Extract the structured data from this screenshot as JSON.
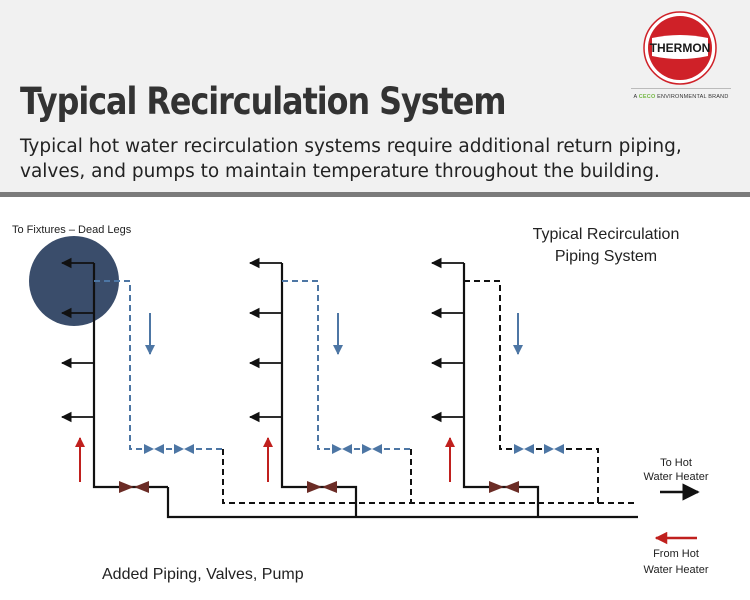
{
  "title": "Typical Recirculation System",
  "subtitle": "Typical hot water recirculation systems require additional return piping, valves, and pumps to maintain temperature throughout the building.",
  "brand": {
    "name": "THERMON",
    "tagline_prefix": "A ",
    "tagline_highlight": "CECO",
    "tagline_suffix": " ENVIRONMENTAL BRAND"
  },
  "diagram": {
    "dead_legs_label": "To Fixtures – Dead Legs",
    "system_title_line1": "Typical Recirculation",
    "system_title_line2": "Piping System",
    "to_heater_line1": "To Hot",
    "to_heater_line2": "Water Heater",
    "from_heater_line1": "From Hot",
    "from_heater_line2": "Water Heater",
    "added_label": "Added Piping, Valves, Pump"
  },
  "colors": {
    "header_bg": "#f1f1f1",
    "header_rule": "#7b7b7b",
    "title": "#333333",
    "pipe": "#111111",
    "return_pipe": "#4d76a4",
    "flow_up": "#c0201e",
    "flow_down": "#4d76a4",
    "valve": "#6b2c26",
    "dead_leg_fill": "#3a4d6b",
    "brand_red": "#cf2128",
    "brand_green": "#74b843"
  }
}
